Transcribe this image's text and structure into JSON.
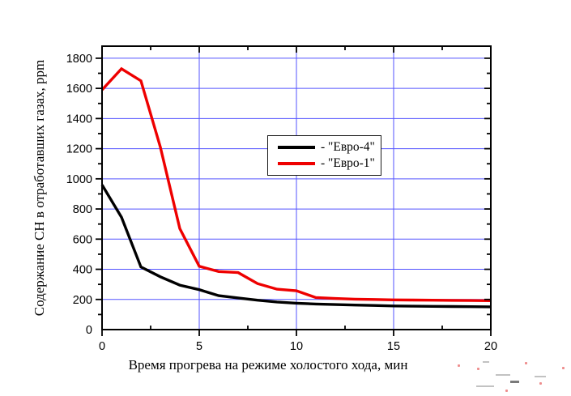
{
  "y_axis_title": "Содержание CH в отработавших газах, ppm",
  "x_axis_title": "Время прогрева на режиме холостого хода, мин",
  "legend": {
    "items": [
      {
        "label": "- \"Евро-4\"",
        "color": "#000000"
      },
      {
        "label": "- \"Евро-1\"",
        "color": "#ee0000"
      }
    ]
  },
  "chart_data": {
    "type": "line",
    "title": "",
    "xlabel": "Время прогрева на режиме холостого хода, мин",
    "ylabel": "Содержание CH в отработавших газах, ppm",
    "x": [
      0,
      1,
      2,
      3,
      4,
      5,
      6,
      7,
      8,
      9,
      10,
      11,
      12,
      13,
      14,
      15,
      16,
      17,
      18,
      19,
      20
    ],
    "series": [
      {
        "name": "Евро-4",
        "color": "#000000",
        "values": [
          960,
          745,
          415,
          350,
          295,
          265,
          225,
          210,
          195,
          183,
          175,
          170,
          166,
          163,
          160,
          157,
          155,
          154,
          153,
          152,
          151
        ]
      },
      {
        "name": "Евро-1",
        "color": "#ee0000",
        "values": [
          1590,
          1730,
          1650,
          1210,
          670,
          420,
          385,
          378,
          305,
          268,
          258,
          212,
          206,
          202,
          200,
          197,
          196,
          195,
          194,
          193,
          192
        ]
      }
    ],
    "xlim": [
      0,
      20
    ],
    "ylim": [
      0,
      1880
    ],
    "x_major_ticks": [
      0,
      5,
      10,
      15,
      20
    ],
    "x_minor_step": 2.5,
    "y_major_ticks": [
      0,
      200,
      400,
      600,
      800,
      1000,
      1200,
      1400,
      1600,
      1800
    ],
    "y_minor_step": 100,
    "grid": {
      "on": true,
      "color": "#5353ff",
      "x_lines": [
        5,
        10,
        15
      ],
      "y_lines": [
        200,
        400,
        600,
        800,
        1000,
        1200,
        1400,
        1600,
        1800
      ]
    },
    "legend_position": "inside upper-center-left",
    "frame_color": "#000000"
  }
}
